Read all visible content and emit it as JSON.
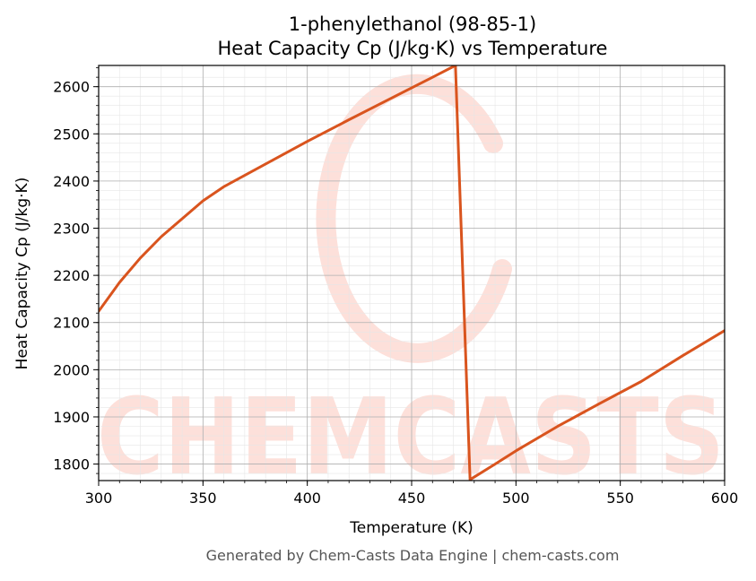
{
  "chart_data": {
    "type": "line",
    "title": "1-phenylethanol (98-85-1)",
    "subtitle": "Heat Capacity Cp (J/kg·K) vs Temperature",
    "xlabel": "Temperature (K)",
    "ylabel": "Heat Capacity Cp (J/kg·K)",
    "xlim": [
      300,
      600
    ],
    "ylim": [
      1765,
      2645
    ],
    "x_ticks": [
      300,
      350,
      400,
      450,
      500,
      550,
      600
    ],
    "y_ticks": [
      1800,
      1900,
      2000,
      2100,
      2200,
      2300,
      2400,
      2500,
      2600
    ],
    "grid": true,
    "series": [
      {
        "color": "#d9541e",
        "points": [
          [
            300,
            2124
          ],
          [
            310,
            2185
          ],
          [
            320,
            2237
          ],
          [
            330,
            2282
          ],
          [
            340,
            2320
          ],
          [
            350,
            2358
          ],
          [
            360,
            2388
          ],
          [
            380,
            2436
          ],
          [
            400,
            2484
          ],
          [
            420,
            2530
          ],
          [
            440,
            2575
          ],
          [
            460,
            2620
          ],
          [
            471,
            2645
          ],
          [
            478,
            1767
          ],
          [
            490,
            1800
          ],
          [
            500,
            1828
          ],
          [
            520,
            1880
          ],
          [
            540,
            1928
          ],
          [
            560,
            1975
          ],
          [
            580,
            2030
          ],
          [
            600,
            2083
          ]
        ]
      }
    ]
  },
  "watermark": {
    "text": "CHEMCASTS",
    "color": "#fde0da"
  },
  "footer": {
    "text": "Generated by Chem-Casts Data Engine | chem-casts.com"
  }
}
